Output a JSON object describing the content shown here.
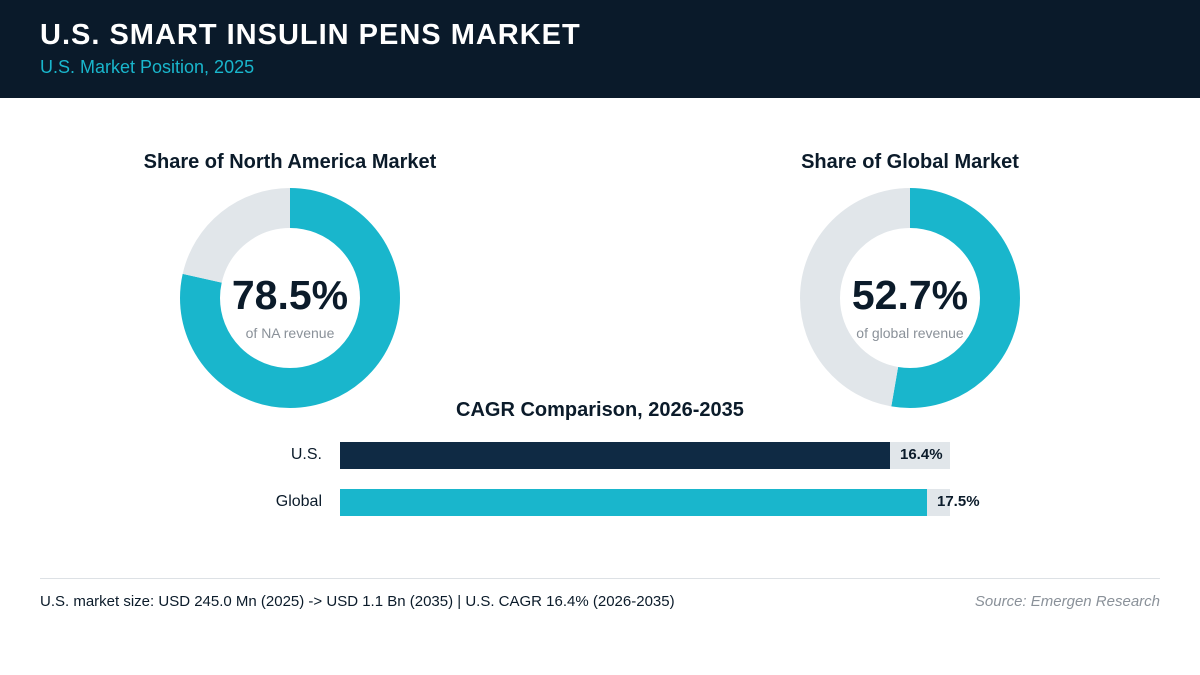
{
  "header": {
    "title": "U.S. SMART INSULIN PENS MARKET",
    "subtitle": "U.S. Market Position, 2025"
  },
  "colors": {
    "accent": "#19b6cc",
    "navy": "#0f2a44",
    "track": "#e1e6ea",
    "header_bg": "#0a1a2a"
  },
  "chart_data": [
    {
      "type": "pie",
      "title": "Share of North America Market",
      "center_value": "78.5%",
      "center_caption": "of NA revenue",
      "values": [
        78.5,
        21.5
      ]
    },
    {
      "type": "pie",
      "title": "Share of Global Market",
      "center_value": "52.7%",
      "center_caption": "of global revenue",
      "values": [
        52.7,
        47.3
      ]
    },
    {
      "type": "bar",
      "title": "CAGR Comparison, 2026-2035",
      "categories": [
        "U.S.",
        "Global"
      ],
      "values": [
        16.4,
        17.5
      ],
      "value_labels": [
        "16.4%",
        "17.5%"
      ],
      "xlim": [
        0,
        18.2
      ]
    }
  ],
  "footer": {
    "note": "U.S. market size: USD 245.0 Mn (2025) -> USD 1.1 Bn (2035)  |  U.S. CAGR 16.4% (2026-2035)",
    "source": "Source: Emergen Research"
  }
}
